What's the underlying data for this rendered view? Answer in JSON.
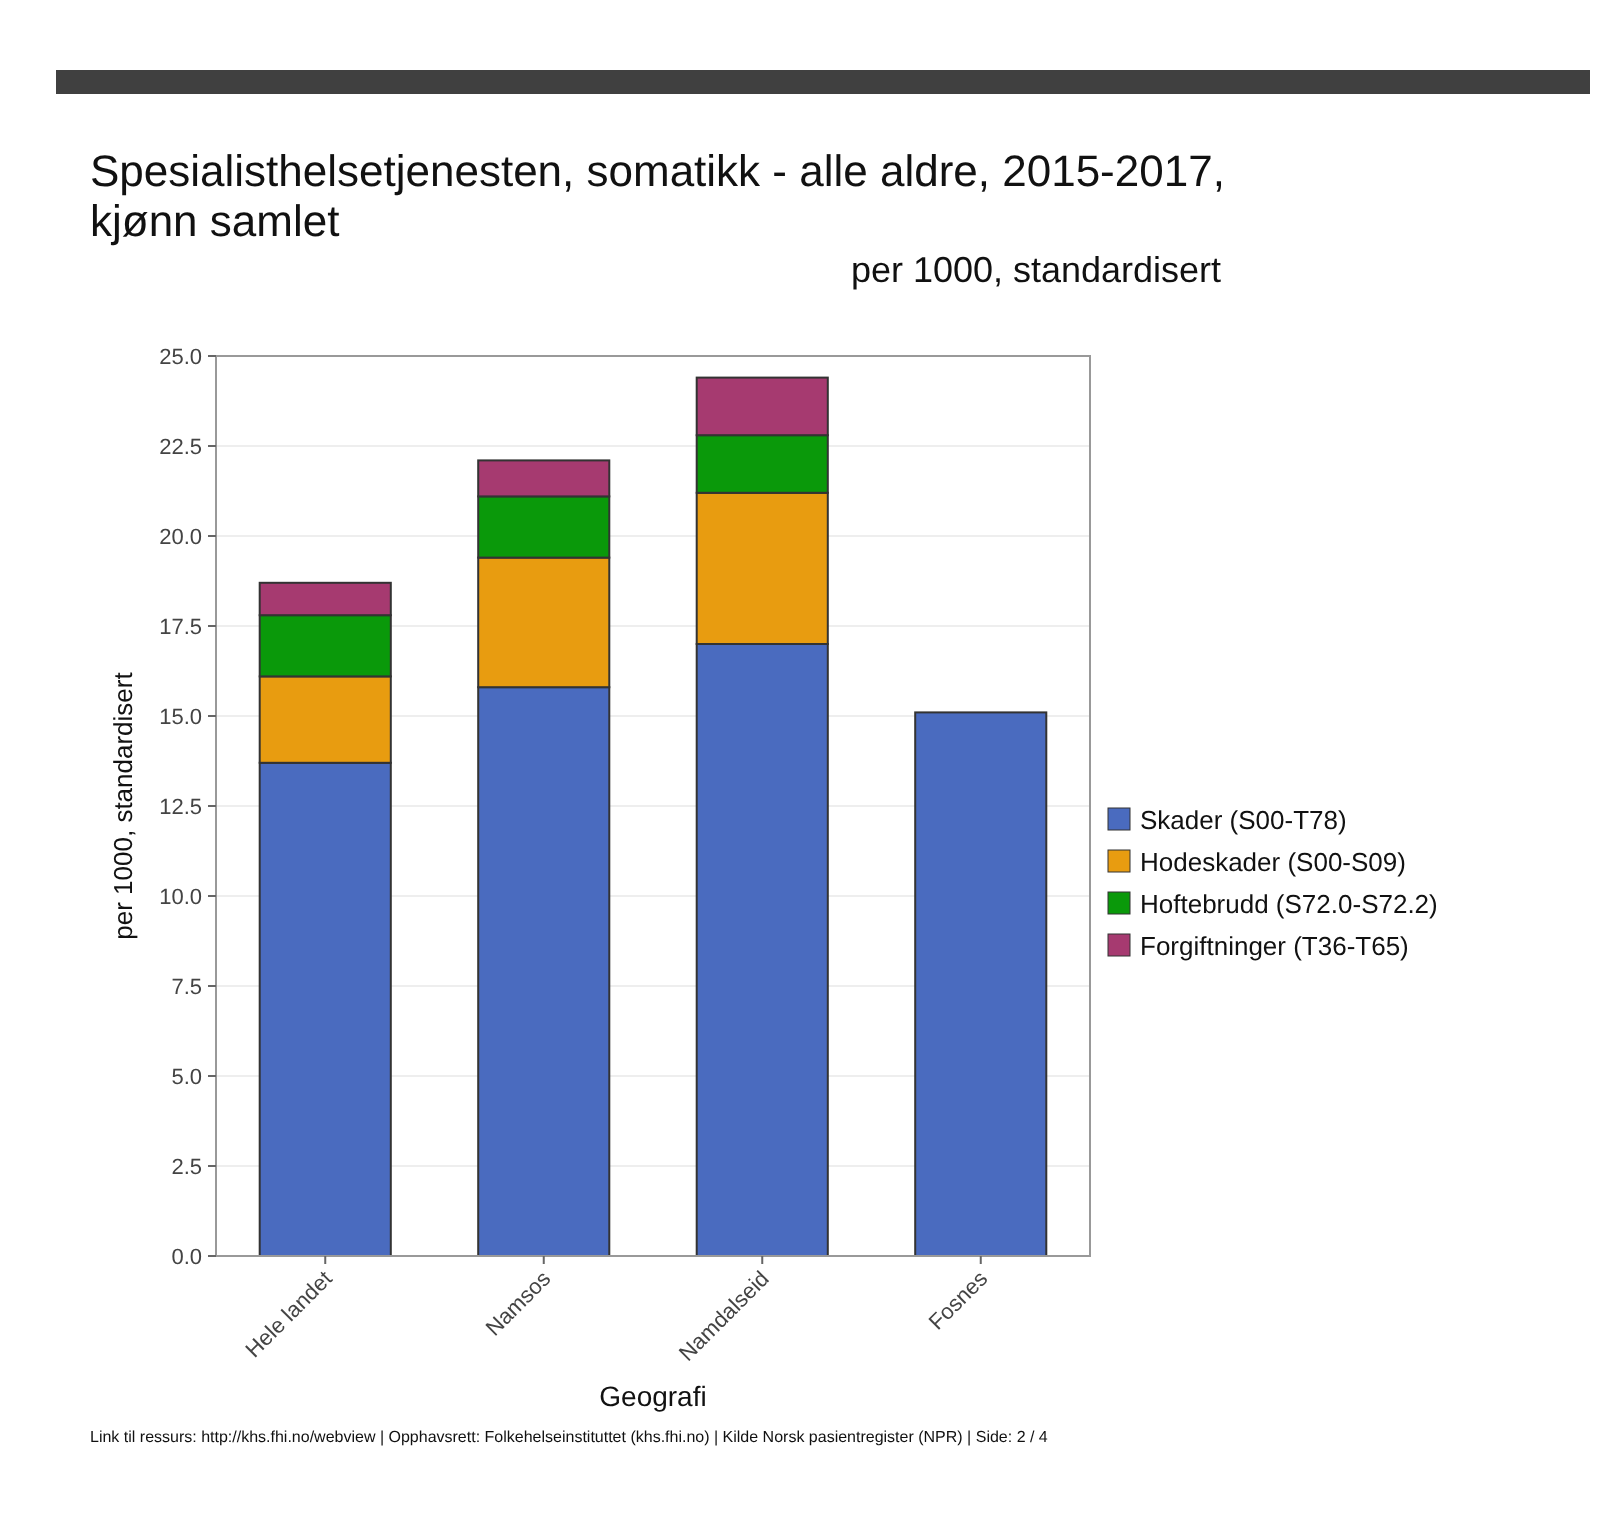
{
  "chart_data": {
    "type": "bar",
    "title": "Spesialisthelsetjenesten, somatikk - alle aldre, 2015-2017, kjønn samlet",
    "subtitle": "per 1000, standardisert",
    "xlabel": "Geografi",
    "ylabel": "per 1000, standardisert",
    "categories": [
      "Hele landet",
      "Namsos",
      "Namdalseid",
      "Fosnes"
    ],
    "stacked": true,
    "series": [
      {
        "name": "Skader (S00-T78)",
        "color": "#4a6bbf",
        "values": [
          13.7,
          15.8,
          17.0,
          15.1
        ]
      },
      {
        "name": "Hodeskader (S00-S09)",
        "color": "#e89c10",
        "values": [
          2.4,
          3.6,
          4.2,
          null
        ]
      },
      {
        "name": "Hoftebrudd (S72.0-S72.2)",
        "color": "#0a990a",
        "values": [
          1.7,
          1.7,
          1.6,
          null
        ]
      },
      {
        "name": "Forgiftninger (T36-T65)",
        "color": "#a63a70",
        "values": [
          0.9,
          1.0,
          1.6,
          null
        ]
      }
    ],
    "ylim": [
      0,
      25
    ],
    "yticks": [
      {
        "value": 0,
        "label": "0.0"
      },
      {
        "value": 2.5,
        "label": "2.5"
      },
      {
        "value": 5,
        "label": "5.0"
      },
      {
        "value": 7.5,
        "label": "7.5"
      },
      {
        "value": 10,
        "label": "10.0"
      },
      {
        "value": 12.5,
        "label": "12.5"
      },
      {
        "value": 15,
        "label": "15.0"
      },
      {
        "value": 17.5,
        "label": "17.5"
      },
      {
        "value": 20,
        "label": "20.0"
      },
      {
        "value": 22.5,
        "label": "22.5"
      },
      {
        "value": 25,
        "label": "25.0"
      }
    ],
    "grid": "y",
    "legend": "right",
    "annotations": [
      "Link til ressurs: http://khs.fhi.no/webview | Opphavsrett: Folkehelseinstituttet (khs.fhi.no) | Kilde Norsk pasientregister (NPR) | Side: 2 / 4"
    ]
  }
}
